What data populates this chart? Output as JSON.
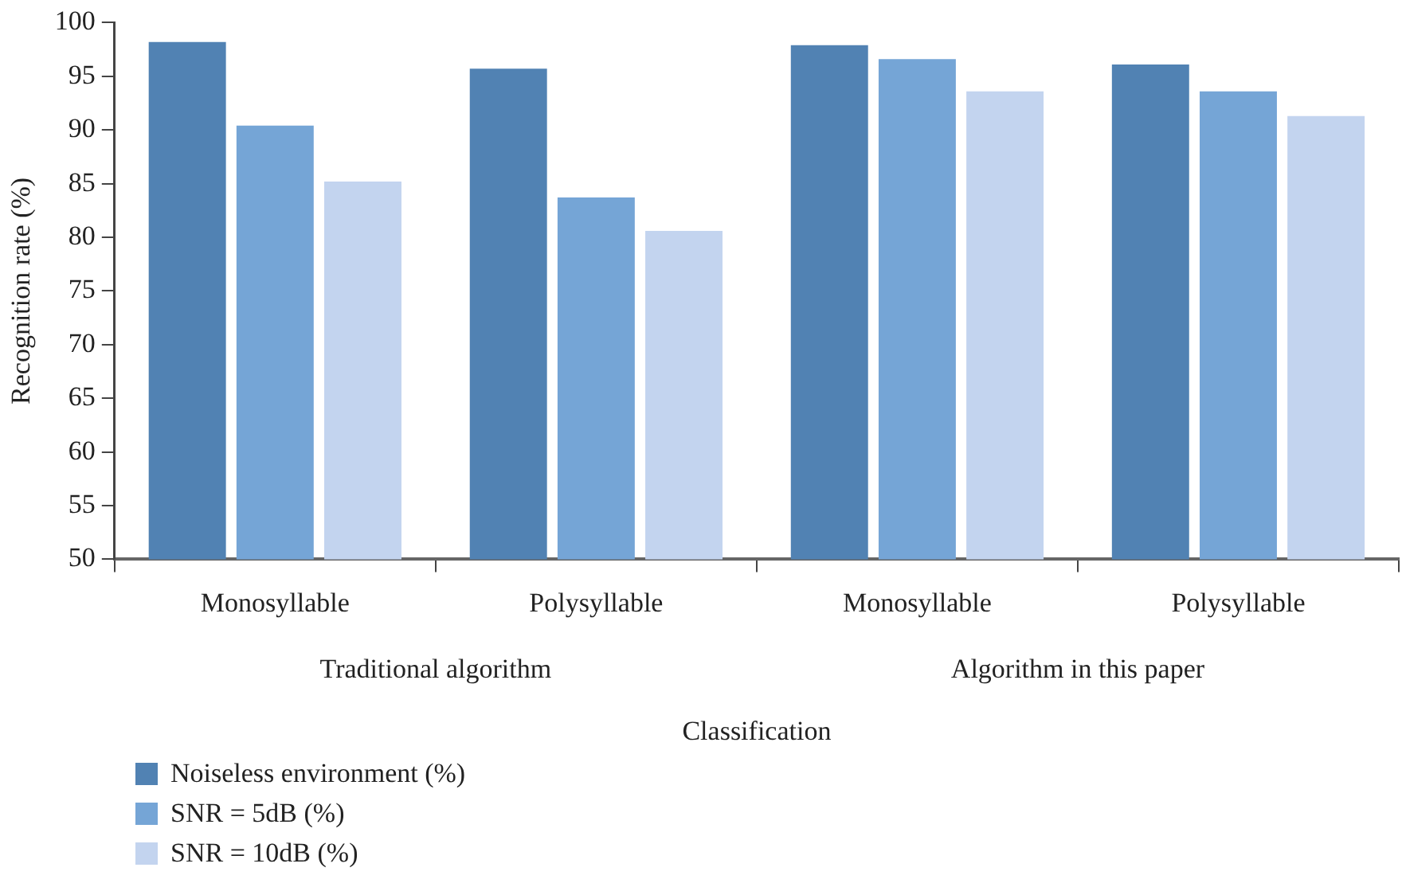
{
  "chart_data": {
    "type": "bar",
    "xlabel": "Classification",
    "ylabel": "Recognition rate (%)",
    "categories": [
      "Monosyllable",
      "Polysyllable",
      "Monosyllable",
      "Polysyllable"
    ],
    "annotations": [
      "Traditional algorithm",
      "Algorithm in this paper"
    ],
    "series": [
      {
        "name": "Noiseless environment (%)",
        "color": "#5182b3",
        "values": [
          98.2,
          95.7,
          97.9,
          96.1
        ]
      },
      {
        "name": "SNR = 5dB (%)",
        "color": "#75a5d6",
        "values": [
          90.4,
          83.7,
          96.6,
          93.6
        ]
      },
      {
        "name": "SNR = 10dB (%)",
        "color": "#c3d4ef",
        "values": [
          85.2,
          80.6,
          93.6,
          91.3
        ]
      }
    ],
    "ylim": [
      50,
      100
    ],
    "yticks": [
      50,
      55,
      60,
      65,
      70,
      75,
      80,
      85,
      90,
      95,
      100
    ],
    "grid": false,
    "legend": "bottom left"
  }
}
